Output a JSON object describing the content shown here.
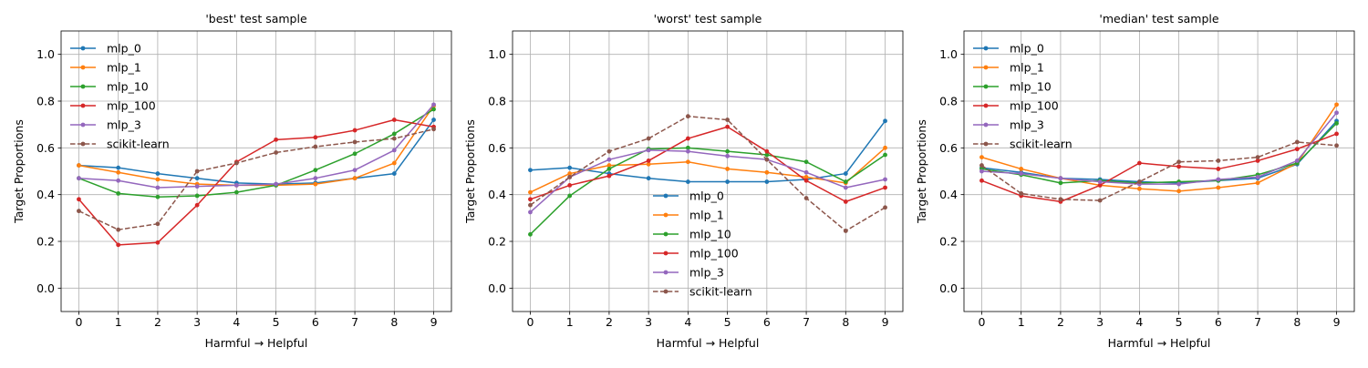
{
  "chart_data": [
    {
      "type": "line",
      "title": "'best' test sample",
      "xlabel": "Harmful → Helpful",
      "ylabel": "Target Proportions",
      "x": [
        0,
        1,
        2,
        3,
        4,
        5,
        6,
        7,
        8,
        9
      ],
      "xticks": [
        "0",
        "1",
        "2",
        "3",
        "4",
        "5",
        "6",
        "7",
        "8",
        "9"
      ],
      "yticks": [
        "0.0",
        "0.2",
        "0.4",
        "0.6",
        "0.8",
        "1.0"
      ],
      "xlim": [
        -0.45,
        9.45
      ],
      "ylim": [
        -0.1,
        1.1
      ],
      "grid": true,
      "legend_position": "upper-left",
      "series": [
        {
          "name": "mlp_0",
          "color": "#1f77b4",
          "dashed": false,
          "values": [
            0.525,
            0.515,
            0.49,
            0.47,
            0.45,
            0.445,
            0.45,
            0.47,
            0.49,
            0.72
          ]
        },
        {
          "name": "mlp_1",
          "color": "#ff7f0e",
          "dashed": false,
          "values": [
            0.525,
            0.495,
            0.465,
            0.445,
            0.44,
            0.44,
            0.445,
            0.47,
            0.535,
            0.78
          ]
        },
        {
          "name": "mlp_10",
          "color": "#2ca02c",
          "dashed": false,
          "values": [
            0.47,
            0.405,
            0.39,
            0.395,
            0.41,
            0.44,
            0.505,
            0.575,
            0.66,
            0.765
          ]
        },
        {
          "name": "mlp_100",
          "color": "#d62728",
          "dashed": false,
          "values": [
            0.38,
            0.185,
            0.195,
            0.355,
            0.54,
            0.635,
            0.645,
            0.675,
            0.72,
            0.69
          ]
        },
        {
          "name": "mlp_3",
          "color": "#9467bd",
          "dashed": false,
          "values": [
            0.47,
            0.46,
            0.43,
            0.435,
            0.44,
            0.445,
            0.47,
            0.505,
            0.59,
            0.785
          ]
        },
        {
          "name": "scikit-learn",
          "color": "#8c564b",
          "dashed": true,
          "values": [
            0.33,
            0.25,
            0.275,
            0.5,
            0.535,
            0.58,
            0.605,
            0.625,
            0.64,
            0.68
          ]
        }
      ]
    },
    {
      "type": "line",
      "title": "'worst' test sample",
      "xlabel": "Harmful → Helpful",
      "ylabel": "Target Proportions",
      "x": [
        0,
        1,
        2,
        3,
        4,
        5,
        6,
        7,
        8,
        9
      ],
      "xticks": [
        "0",
        "1",
        "2",
        "3",
        "4",
        "5",
        "6",
        "7",
        "8",
        "9"
      ],
      "yticks": [
        "0.0",
        "0.2",
        "0.4",
        "0.6",
        "0.8",
        "1.0"
      ],
      "xlim": [
        -0.45,
        9.45
      ],
      "ylim": [
        -0.1,
        1.1
      ],
      "grid": true,
      "legend_position": "lower-center",
      "series": [
        {
          "name": "mlp_0",
          "color": "#1f77b4",
          "dashed": false,
          "values": [
            0.505,
            0.515,
            0.49,
            0.47,
            0.455,
            0.455,
            0.455,
            0.465,
            0.49,
            0.715
          ]
        },
        {
          "name": "mlp_1",
          "color": "#ff7f0e",
          "dashed": false,
          "values": [
            0.41,
            0.49,
            0.525,
            0.53,
            0.54,
            0.51,
            0.495,
            0.475,
            0.45,
            0.6
          ]
        },
        {
          "name": "mlp_10",
          "color": "#2ca02c",
          "dashed": false,
          "values": [
            0.23,
            0.395,
            0.51,
            0.595,
            0.6,
            0.585,
            0.57,
            0.54,
            0.455,
            0.57
          ]
        },
        {
          "name": "mlp_100",
          "color": "#d62728",
          "dashed": false,
          "values": [
            0.38,
            0.44,
            0.48,
            0.545,
            0.64,
            0.69,
            0.585,
            0.46,
            0.37,
            0.43
          ]
        },
        {
          "name": "mlp_3",
          "color": "#9467bd",
          "dashed": false,
          "values": [
            0.325,
            0.475,
            0.55,
            0.59,
            0.585,
            0.565,
            0.55,
            0.495,
            0.43,
            0.465
          ]
        },
        {
          "name": "scikit-learn",
          "color": "#8c564b",
          "dashed": true,
          "values": [
            0.355,
            0.475,
            0.585,
            0.64,
            0.735,
            0.72,
            0.55,
            0.385,
            0.245,
            0.345
          ]
        }
      ]
    },
    {
      "type": "line",
      "title": "'median' test sample",
      "xlabel": "Harmful → Helpful",
      "ylabel": "Target Proportions",
      "x": [
        0,
        1,
        2,
        3,
        4,
        5,
        6,
        7,
        8,
        9
      ],
      "xticks": [
        "0",
        "1",
        "2",
        "3",
        "4",
        "5",
        "6",
        "7",
        "8",
        "9"
      ],
      "yticks": [
        "0.0",
        "0.2",
        "0.4",
        "0.6",
        "0.8",
        "1.0"
      ],
      "xlim": [
        -0.45,
        9.45
      ],
      "ylim": [
        -0.1,
        1.1
      ],
      "grid": true,
      "legend_position": "upper-left",
      "series": [
        {
          "name": "mlp_0",
          "color": "#1f77b4",
          "dashed": false,
          "values": [
            0.515,
            0.495,
            0.47,
            0.465,
            0.455,
            0.45,
            0.46,
            0.47,
            0.53,
            0.715
          ]
        },
        {
          "name": "mlp_1",
          "color": "#ff7f0e",
          "dashed": false,
          "values": [
            0.56,
            0.51,
            0.47,
            0.44,
            0.425,
            0.415,
            0.43,
            0.45,
            0.535,
            0.785
          ]
        },
        {
          "name": "mlp_10",
          "color": "#2ca02c",
          "dashed": false,
          "values": [
            0.51,
            0.485,
            0.45,
            0.46,
            0.45,
            0.455,
            0.46,
            0.485,
            0.535,
            0.705
          ]
        },
        {
          "name": "mlp_100",
          "color": "#d62728",
          "dashed": false,
          "values": [
            0.46,
            0.395,
            0.37,
            0.44,
            0.535,
            0.52,
            0.51,
            0.545,
            0.595,
            0.66
          ]
        },
        {
          "name": "mlp_3",
          "color": "#9467bd",
          "dashed": false,
          "values": [
            0.5,
            0.49,
            0.47,
            0.455,
            0.445,
            0.445,
            0.465,
            0.475,
            0.545,
            0.75
          ]
        },
        {
          "name": "scikit-learn",
          "color": "#8c564b",
          "dashed": true,
          "values": [
            0.525,
            0.405,
            0.38,
            0.375,
            0.455,
            0.54,
            0.545,
            0.56,
            0.625,
            0.61
          ]
        }
      ]
    }
  ]
}
